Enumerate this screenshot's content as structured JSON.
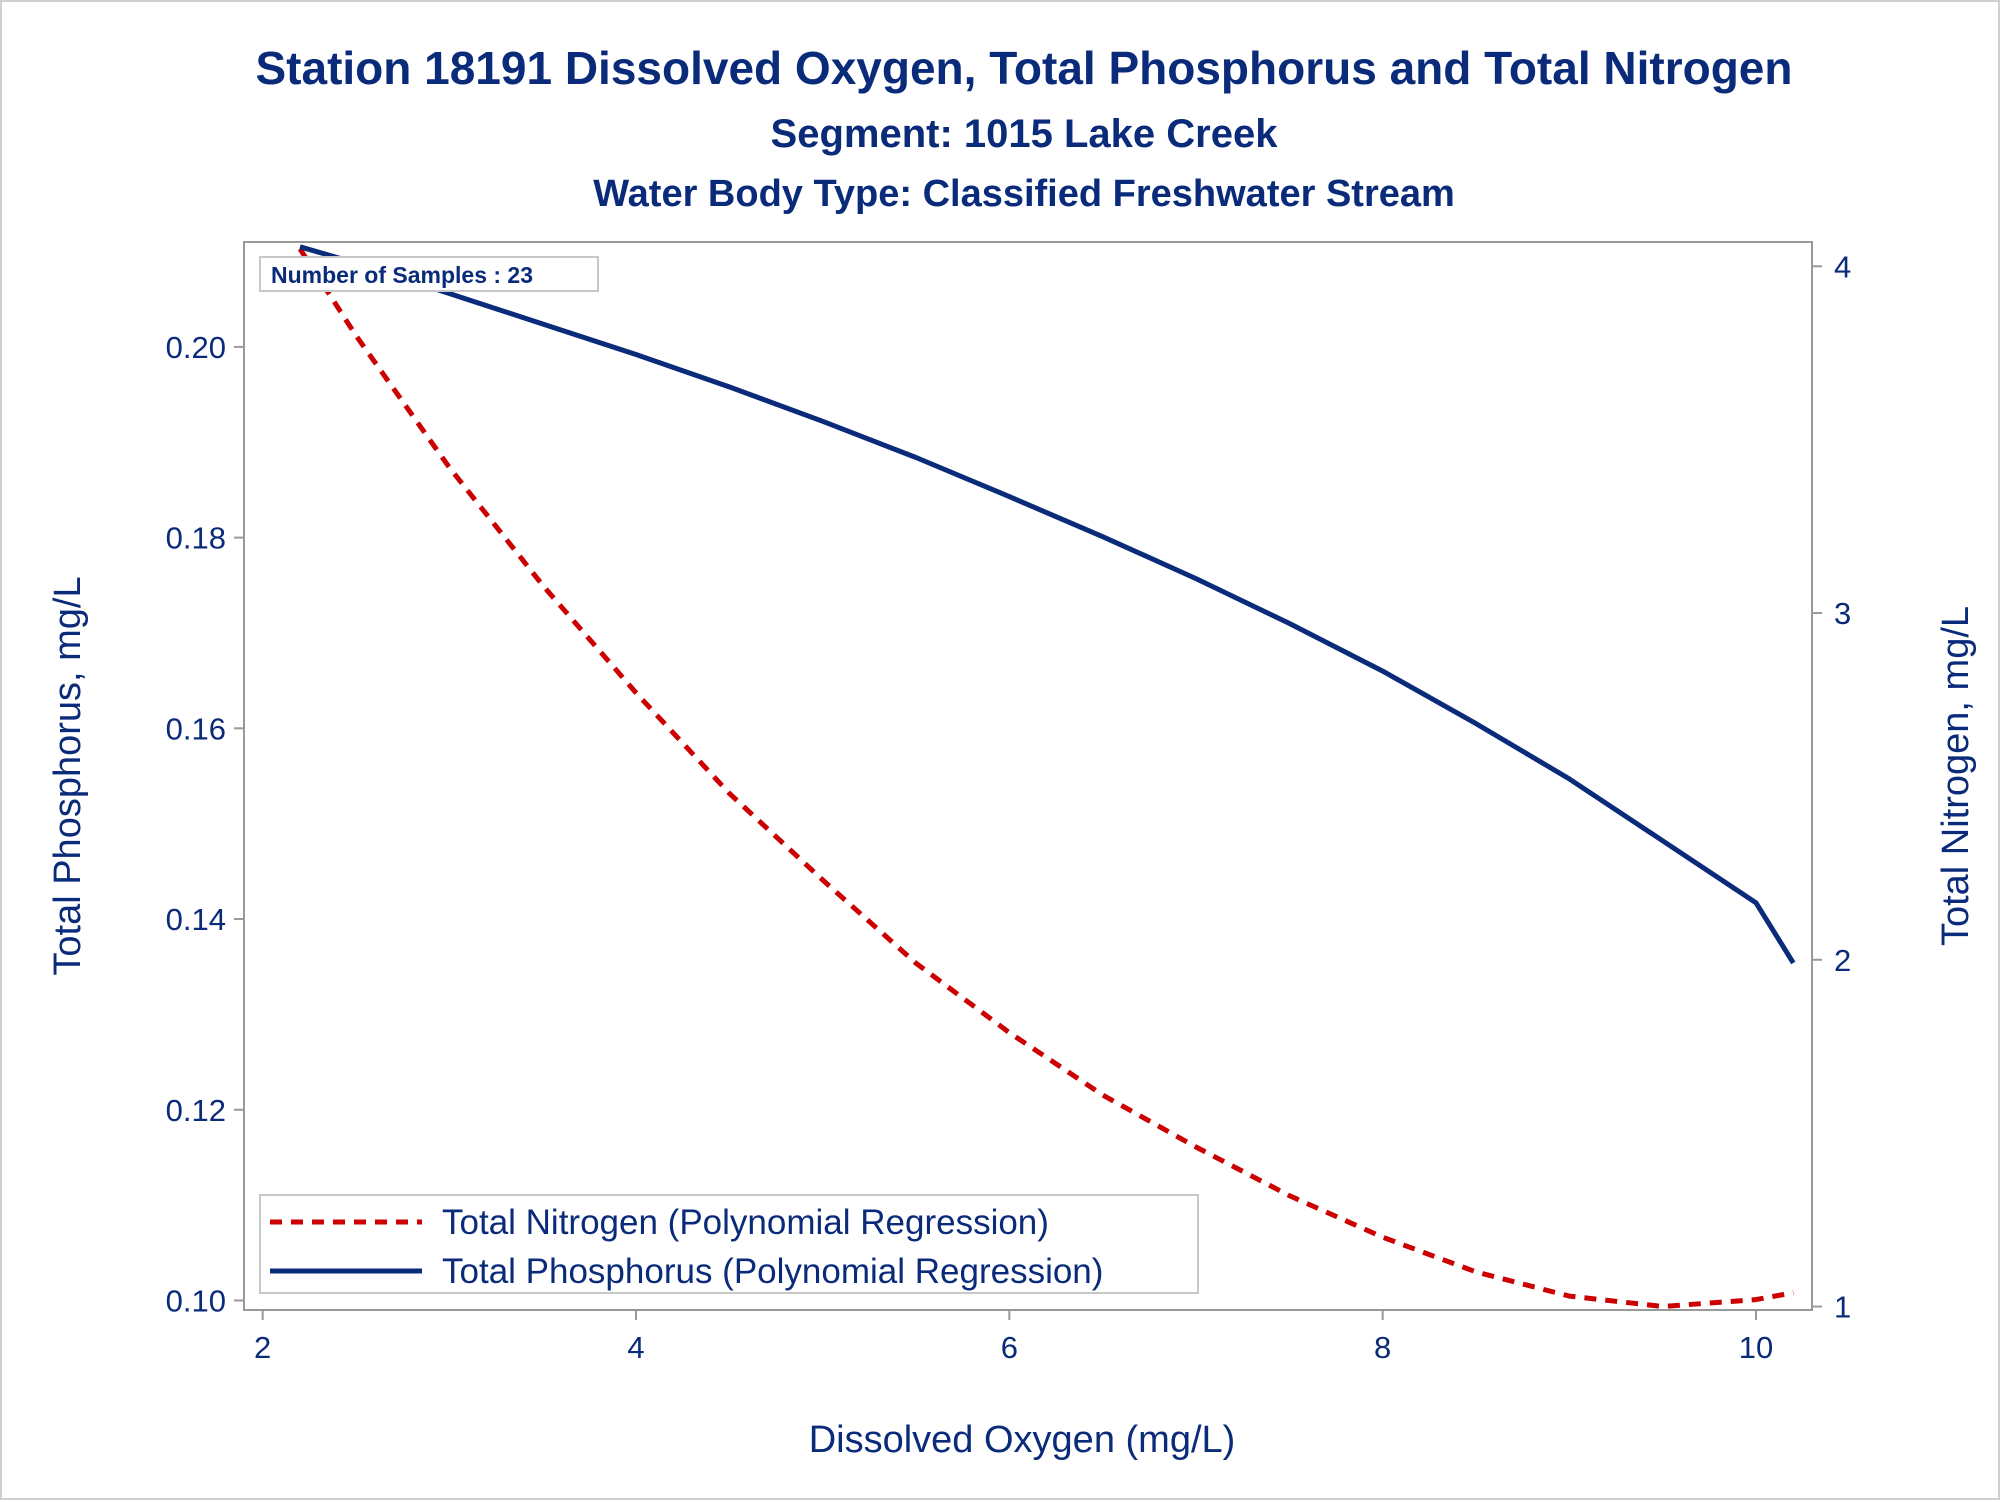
{
  "titles": {
    "line1": "Station 18191  Dissolved Oxygen, Total Phosphorus and Total Nitrogen",
    "line2": "Segment: 1015  Lake Creek",
    "line3": "Water Body Type: Classified Freshwater Stream"
  },
  "annotation": {
    "samples": "Number of Samples : 23"
  },
  "colors": {
    "text": "#0a2a7a",
    "phosphorus": "#0a2a7a",
    "nitrogen": "#cc0000",
    "frame": "#999999"
  },
  "chart_data": {
    "type": "line",
    "title": "Station 18191  Dissolved Oxygen, Total Phosphorus and Total Nitrogen",
    "xlabel": "Dissolved Oxygen (mg/L)",
    "ylabel": "Total Phosphorus, mg/L",
    "y2label": "Total Nitrogen, mg/L",
    "xlim": [
      1.9,
      10.3
    ],
    "ylim": [
      0.099,
      0.211
    ],
    "y2lim": [
      0.99,
      4.07
    ],
    "xticks": [
      2,
      4,
      6,
      8,
      10
    ],
    "yticks": [
      0.1,
      0.12,
      0.14,
      0.16,
      0.18,
      0.2
    ],
    "yticklabels": [
      "0.10",
      "0.12",
      "0.14",
      "0.16",
      "0.18",
      "0.20"
    ],
    "y2ticks": [
      1,
      2,
      3,
      4
    ],
    "grid": false,
    "legend_position": "bottom-left",
    "series": [
      {
        "name": "Total Nitrogen (Polynomial Regression)",
        "axis": "y2",
        "style": "dashed",
        "color": "#cc0000",
        "x": [
          2.2,
          2.5,
          3.0,
          3.5,
          4.0,
          4.5,
          5.0,
          5.5,
          6.0,
          6.5,
          7.0,
          7.5,
          8.0,
          8.5,
          9.0,
          9.5,
          10.0,
          10.2
        ],
        "y": [
          4.05,
          3.8,
          3.42,
          3.08,
          2.77,
          2.48,
          2.23,
          1.99,
          1.79,
          1.61,
          1.46,
          1.32,
          1.2,
          1.1,
          1.03,
          1.0,
          1.02,
          1.04
        ]
      },
      {
        "name": "Total Phosphorus (Polynomial Regression)",
        "axis": "y",
        "style": "solid",
        "color": "#0a2a7a",
        "x": [
          2.2,
          2.5,
          3.0,
          3.5,
          4.0,
          4.5,
          5.0,
          5.5,
          6.0,
          6.5,
          7.0,
          7.5,
          8.0,
          8.5,
          9.0,
          9.5,
          10.0,
          10.2
        ],
        "y": [
          0.2105,
          0.2088,
          0.2056,
          0.2024,
          0.1992,
          0.1958,
          0.1922,
          0.1884,
          0.1843,
          0.1801,
          0.1757,
          0.171,
          0.166,
          0.1605,
          0.1547,
          0.1482,
          0.1417,
          0.1354
        ]
      }
    ]
  }
}
